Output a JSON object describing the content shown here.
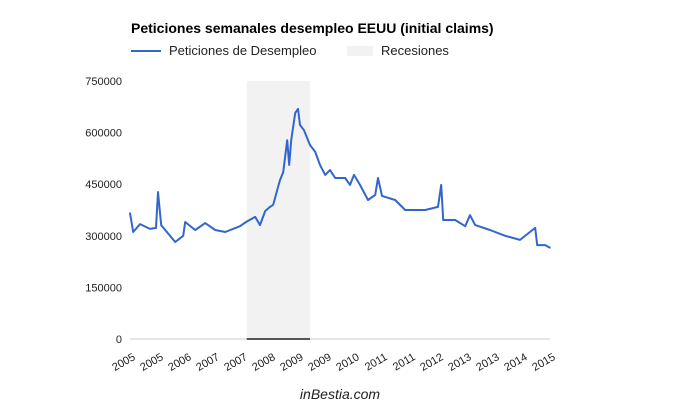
{
  "chart_data": {
    "type": "line",
    "title": "Peticiones semanales desempleo EEUU (initial claims)",
    "legend": {
      "position": "top",
      "entries": [
        "Peticiones de Desempleo",
        "Recesiones"
      ]
    },
    "series": [
      {
        "name": "Peticiones de Desempleo",
        "color": "#3366cc",
        "points": [
          [
            2005.0,
            366000
          ],
          [
            2005.08,
            311000
          ],
          [
            2005.25,
            334000
          ],
          [
            2005.5,
            320000
          ],
          [
            2005.65,
            323000
          ],
          [
            2005.7,
            427000
          ],
          [
            2005.78,
            331000
          ],
          [
            2006.0,
            300000
          ],
          [
            2006.13,
            282000
          ],
          [
            2006.33,
            300000
          ],
          [
            2006.38,
            340000
          ],
          [
            2006.63,
            317000
          ],
          [
            2006.88,
            337000
          ],
          [
            2007.13,
            317000
          ],
          [
            2007.38,
            311000
          ],
          [
            2007.75,
            328000
          ],
          [
            2007.9,
            340000
          ],
          [
            2008.13,
            355000
          ],
          [
            2008.25,
            331000
          ],
          [
            2008.38,
            372000
          ],
          [
            2008.5,
            384000
          ],
          [
            2008.58,
            390000
          ],
          [
            2008.68,
            433000
          ],
          [
            2008.75,
            462000
          ],
          [
            2008.83,
            485000
          ],
          [
            2008.93,
            578000
          ],
          [
            2008.98,
            506000
          ],
          [
            2009.03,
            578000
          ],
          [
            2009.13,
            657000
          ],
          [
            2009.2,
            669000
          ],
          [
            2009.25,
            622000
          ],
          [
            2009.35,
            607000
          ],
          [
            2009.5,
            564000
          ],
          [
            2009.63,
            544000
          ],
          [
            2009.75,
            506000
          ],
          [
            2009.88,
            477000
          ],
          [
            2010.0,
            491000
          ],
          [
            2010.13,
            468000
          ],
          [
            2010.38,
            468000
          ],
          [
            2010.5,
            448000
          ],
          [
            2010.6,
            477000
          ],
          [
            2010.75,
            448000
          ],
          [
            2010.95,
            404000
          ],
          [
            2011.13,
            419000
          ],
          [
            2011.2,
            468000
          ],
          [
            2011.3,
            416000
          ],
          [
            2011.63,
            404000
          ],
          [
            2011.88,
            375000
          ],
          [
            2012.13,
            375000
          ],
          [
            2012.38,
            375000
          ],
          [
            2012.7,
            384000
          ],
          [
            2012.78,
            448000
          ],
          [
            2012.83,
            346000
          ],
          [
            2013.13,
            346000
          ],
          [
            2013.38,
            328000
          ],
          [
            2013.5,
            360000
          ],
          [
            2013.63,
            331000
          ],
          [
            2014.0,
            317000
          ],
          [
            2014.38,
            300000
          ],
          [
            2014.75,
            288000
          ],
          [
            2015.13,
            323000
          ],
          [
            2015.18,
            273000
          ],
          [
            2015.38,
            273000
          ],
          [
            2015.5,
            265000
          ]
        ]
      }
    ],
    "recessions": [
      [
        2007.92,
        2009.5
      ]
    ],
    "recession_color": "#f2f2f2",
    "xlim": [
      2005.0,
      2015.5
    ],
    "ylim": [
      0,
      750000
    ],
    "yticks": [
      0,
      150000,
      300000,
      450000,
      600000,
      750000
    ],
    "ytick_labels": [
      "0",
      "150000",
      "300000",
      "450000",
      "600000",
      "750000"
    ],
    "xtick_labels": [
      "2005",
      "2005",
      "2006",
      "2007",
      "2007",
      "2008",
      "2009",
      "2009",
      "2010",
      "2011",
      "2011",
      "2012",
      "2013",
      "2013",
      "2014",
      "2015"
    ],
    "grid": false
  },
  "footer": "inBestia.com"
}
